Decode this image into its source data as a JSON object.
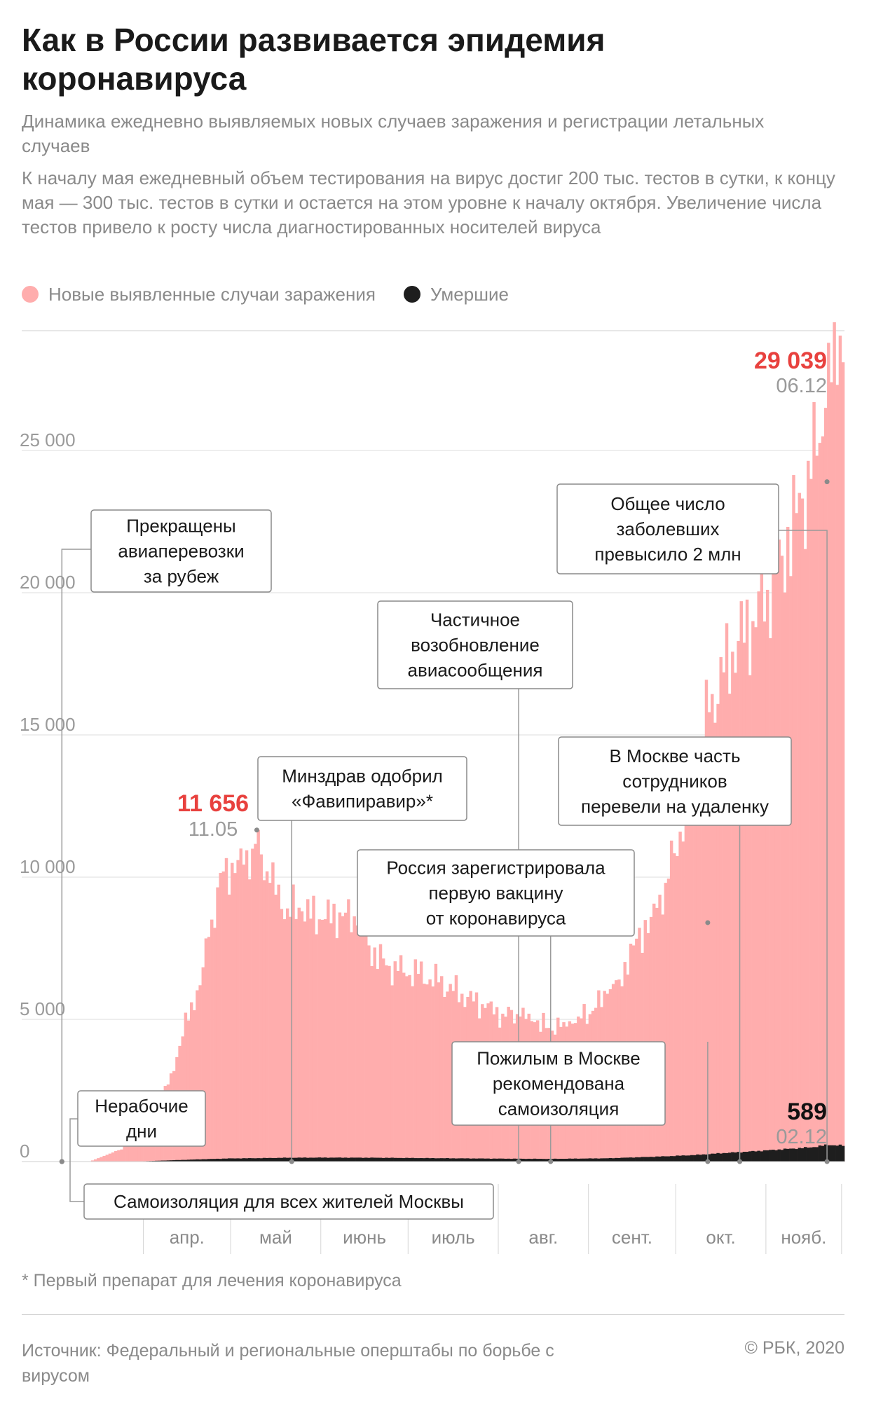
{
  "title": "Как в России развивается эпидемия коронавируса",
  "subtitle": "Динамика ежедневно выявляемых новых случаев заражения и регистрации летальных случаев",
  "description": "К началу мая ежедневный объем тестирования на вирус достиг 200 тыс. тестов в сутки, к концу мая — 300 тыс. тестов в сутки и остается на этом уровне к началу октября. Увеличение числа тестов привело к росту числа диагностированных носителей вируса",
  "legend": {
    "cases": {
      "label": "Новые выявленные случаи заражения",
      "color": "#ffadad"
    },
    "deaths": {
      "label": "Умершие",
      "color": "#1e1e1e"
    }
  },
  "footnote": "* Первый препарат для лечения коронавируса",
  "source": "Источник: Федеральный и региональные оперштабы по борьбе с вирусом",
  "copyright": "© РБК, 2020",
  "chart_data": {
    "type": "bar",
    "ylim": [
      0,
      30000
    ],
    "y_ticks": [
      0,
      5000,
      10000,
      15000,
      20000,
      25000
    ],
    "y_tick_labels": [
      "0",
      "5 000",
      "10 000",
      "15 000",
      "20 000",
      "25 000"
    ],
    "months": [
      "апр.",
      "май",
      "июнь",
      "июль",
      "авг.",
      "сент.",
      "окт.",
      "нояб."
    ],
    "month_start_days": [
      31,
      61,
      92,
      122,
      153,
      184,
      214,
      245
    ],
    "end_day": 271,
    "day_origin": "01.03",
    "cases_keypoints": [
      [
        1,
        0
      ],
      [
        12,
        0
      ],
      [
        17,
        200
      ],
      [
        22,
        400
      ],
      [
        26,
        650
      ],
      [
        30,
        900
      ],
      [
        33,
        1100
      ],
      [
        36,
        1800
      ],
      [
        40,
        3100
      ],
      [
        44,
        4400
      ],
      [
        47,
        5600
      ],
      [
        50,
        6200
      ],
      [
        53,
        7900
      ],
      [
        58,
        10200
      ],
      [
        61,
        10500
      ],
      [
        63,
        10600
      ],
      [
        68,
        11000
      ],
      [
        70,
        11656
      ],
      [
        71,
        10800
      ],
      [
        74,
        9800
      ],
      [
        80,
        8900
      ],
      [
        85,
        8800
      ],
      [
        92,
        8500
      ],
      [
        100,
        8750
      ],
      [
        104,
        8300
      ],
      [
        108,
        7600
      ],
      [
        114,
        6900
      ],
      [
        118,
        6700
      ],
      [
        125,
        6600
      ],
      [
        132,
        6300
      ],
      [
        140,
        5900
      ],
      [
        148,
        5400
      ],
      [
        154,
        5200
      ],
      [
        160,
        5100
      ],
      [
        165,
        4900
      ],
      [
        170,
        4700
      ],
      [
        175,
        4900
      ],
      [
        180,
        5100
      ],
      [
        185,
        5300
      ],
      [
        190,
        5900
      ],
      [
        194,
        6400
      ],
      [
        199,
        7600
      ],
      [
        205,
        8600
      ],
      [
        210,
        9800
      ],
      [
        215,
        11600
      ],
      [
        220,
        13800
      ],
      [
        225,
        15800
      ],
      [
        230,
        17200
      ],
      [
        235,
        18300
      ],
      [
        240,
        19000
      ],
      [
        245,
        20100
      ],
      [
        250,
        21300
      ],
      [
        255,
        22800
      ],
      [
        260,
        24000
      ],
      [
        265,
        26500
      ],
      [
        267,
        27400
      ],
      [
        270,
        29039
      ],
      [
        271,
        28100
      ]
    ],
    "deaths_keypoints": [
      [
        1,
        0
      ],
      [
        20,
        0
      ],
      [
        30,
        10
      ],
      [
        40,
        45
      ],
      [
        50,
        80
      ],
      [
        60,
        110
      ],
      [
        70,
        120
      ],
      [
        80,
        135
      ],
      [
        92,
        140
      ],
      [
        110,
        135
      ],
      [
        130,
        120
      ],
      [
        150,
        105
      ],
      [
        170,
        95
      ],
      [
        190,
        115
      ],
      [
        200,
        150
      ],
      [
        210,
        185
      ],
      [
        220,
        230
      ],
      [
        230,
        300
      ],
      [
        240,
        360
      ],
      [
        250,
        430
      ],
      [
        260,
        500
      ],
      [
        266,
        589
      ],
      [
        271,
        560
      ]
    ],
    "labels": {
      "peak_spring": {
        "value": "11 656",
        "date": "11.05"
      },
      "peak_autumn": {
        "value": "29 039",
        "date": "06.12"
      },
      "deaths_peak": {
        "value": "589",
        "date": "02.12"
      }
    },
    "annotations": [
      {
        "lines": [
          "Прекращены",
          "авиаперевозки",
          "за рубеж"
        ]
      },
      {
        "lines": [
          "Нерабочие",
          "дни"
        ]
      },
      {
        "lines": [
          "Самоизоляция для всех жителей Москвы"
        ]
      },
      {
        "lines": [
          "Минздрав одобрил",
          "«Фавипиравир»*"
        ]
      },
      {
        "lines": [
          "Частичное",
          "возобновление",
          "авиасообщения"
        ]
      },
      {
        "lines": [
          "Россия зарегистрировала",
          "первую вакцину",
          "от коронавируса"
        ]
      },
      {
        "lines": [
          "Пожилым в Москве",
          "рекомендована",
          "самоизоляция"
        ]
      },
      {
        "lines": [
          "В Москве часть",
          "сотрудников",
          "перевели на удаленку"
        ]
      },
      {
        "lines": [
          "Общее число",
          "заболевших",
          "превысило 2 млн"
        ]
      }
    ]
  }
}
